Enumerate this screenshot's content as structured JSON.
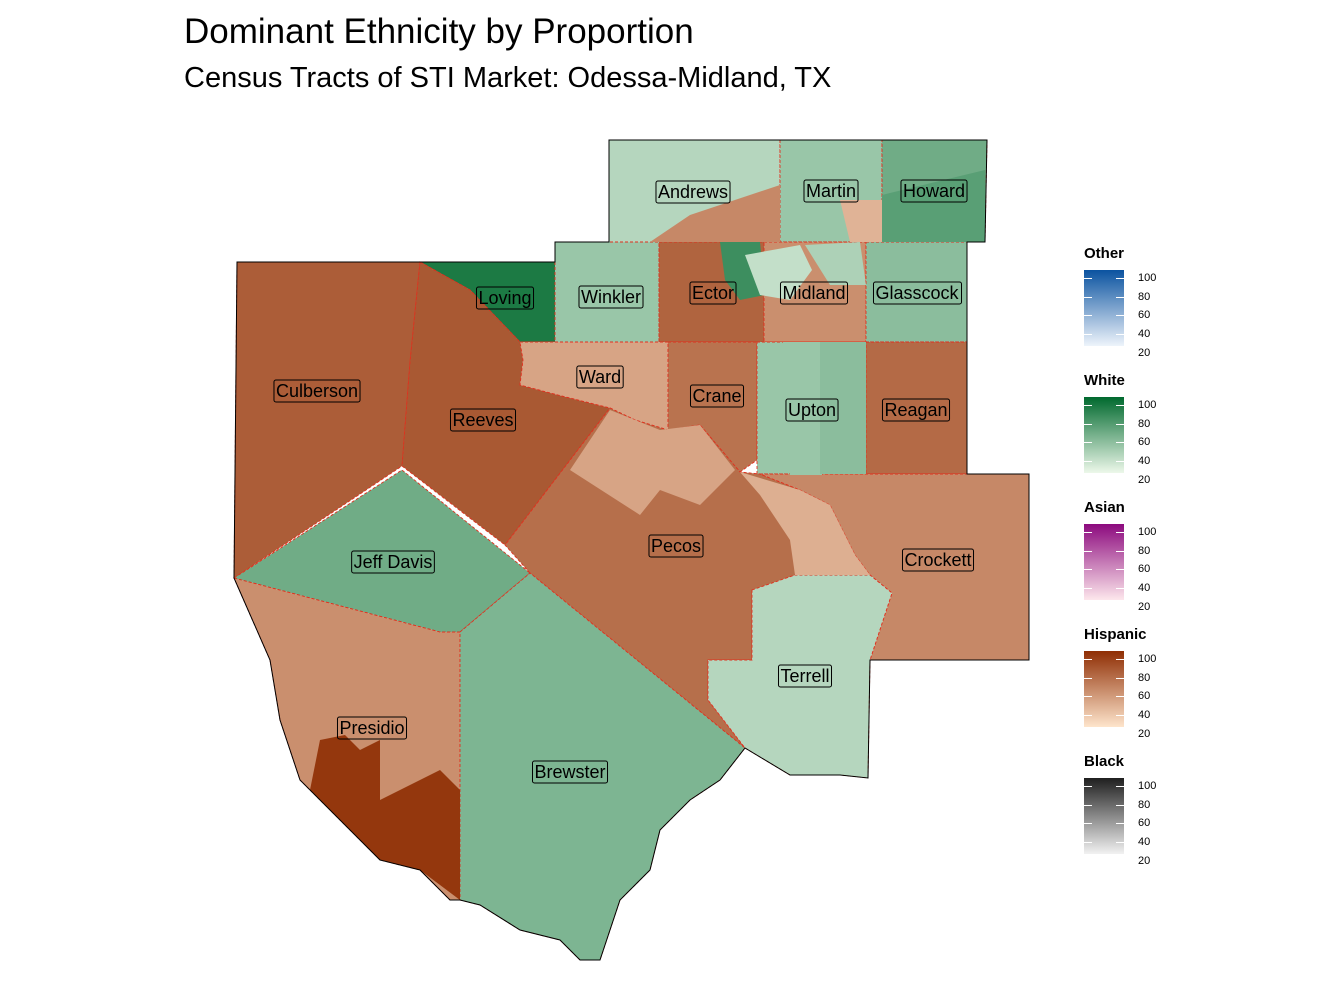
{
  "title": "Dominant Ethnicity by Proportion",
  "subtitle": "Census Tracts of STI Market: Odessa-Midland, TX",
  "counties": [
    {
      "name": "Andrews",
      "group": "White",
      "pct": 35
    },
    {
      "name": "Martin",
      "group": "White",
      "pct": 45
    },
    {
      "name": "Howard",
      "group": "White",
      "pct": 60
    },
    {
      "name": "Loving",
      "group": "White",
      "pct": 90
    },
    {
      "name": "Winkler",
      "group": "White",
      "pct": 45
    },
    {
      "name": "Ector",
      "group": "Hispanic",
      "pct": 75
    },
    {
      "name": "Midland",
      "group": "Hispanic",
      "pct": 55
    },
    {
      "name": "Glasscock",
      "group": "White",
      "pct": 50
    },
    {
      "name": "Culberson",
      "group": "Hispanic",
      "pct": 78
    },
    {
      "name": "Reeves",
      "group": "Hispanic",
      "pct": 80
    },
    {
      "name": "Ward",
      "group": "Hispanic",
      "pct": 45
    },
    {
      "name": "Crane",
      "group": "Hispanic",
      "pct": 68
    },
    {
      "name": "Upton",
      "group": "White",
      "pct": 45
    },
    {
      "name": "Reagan",
      "group": "Hispanic",
      "pct": 72
    },
    {
      "name": "Jeff Davis",
      "group": "White",
      "pct": 60
    },
    {
      "name": "Pecos",
      "group": "Hispanic",
      "pct": 70
    },
    {
      "name": "Crockett",
      "group": "Hispanic",
      "pct": 58
    },
    {
      "name": "Terrell",
      "group": "White",
      "pct": 35
    },
    {
      "name": "Presidio",
      "group": "Hispanic",
      "pct": 55
    },
    {
      "name": "Brewster",
      "group": "White",
      "pct": 55
    }
  ],
  "legend": [
    {
      "title": "Other",
      "ticks": [
        "100",
        "80",
        "60",
        "40",
        "20"
      ],
      "color_low": "#eef4fb",
      "color_high": "#0b53a0"
    },
    {
      "title": "White",
      "ticks": [
        "100",
        "80",
        "60",
        "40",
        "20"
      ],
      "color_low": "#edf8ea",
      "color_high": "#00692e"
    },
    {
      "title": "Asian",
      "ticks": [
        "100",
        "80",
        "60",
        "40",
        "20"
      ],
      "color_low": "#fde7ec",
      "color_high": "#8c0a7e"
    },
    {
      "title": "Hispanic",
      "ticks": [
        "100",
        "80",
        "60",
        "40",
        "20"
      ],
      "color_low": "#fee5cc",
      "color_high": "#8f2e04"
    },
    {
      "title": "Black",
      "ticks": [
        "100",
        "80",
        "60",
        "40",
        "20"
      ],
      "color_low": "#f2f2f2",
      "color_high": "#1f1f1f"
    }
  ]
}
